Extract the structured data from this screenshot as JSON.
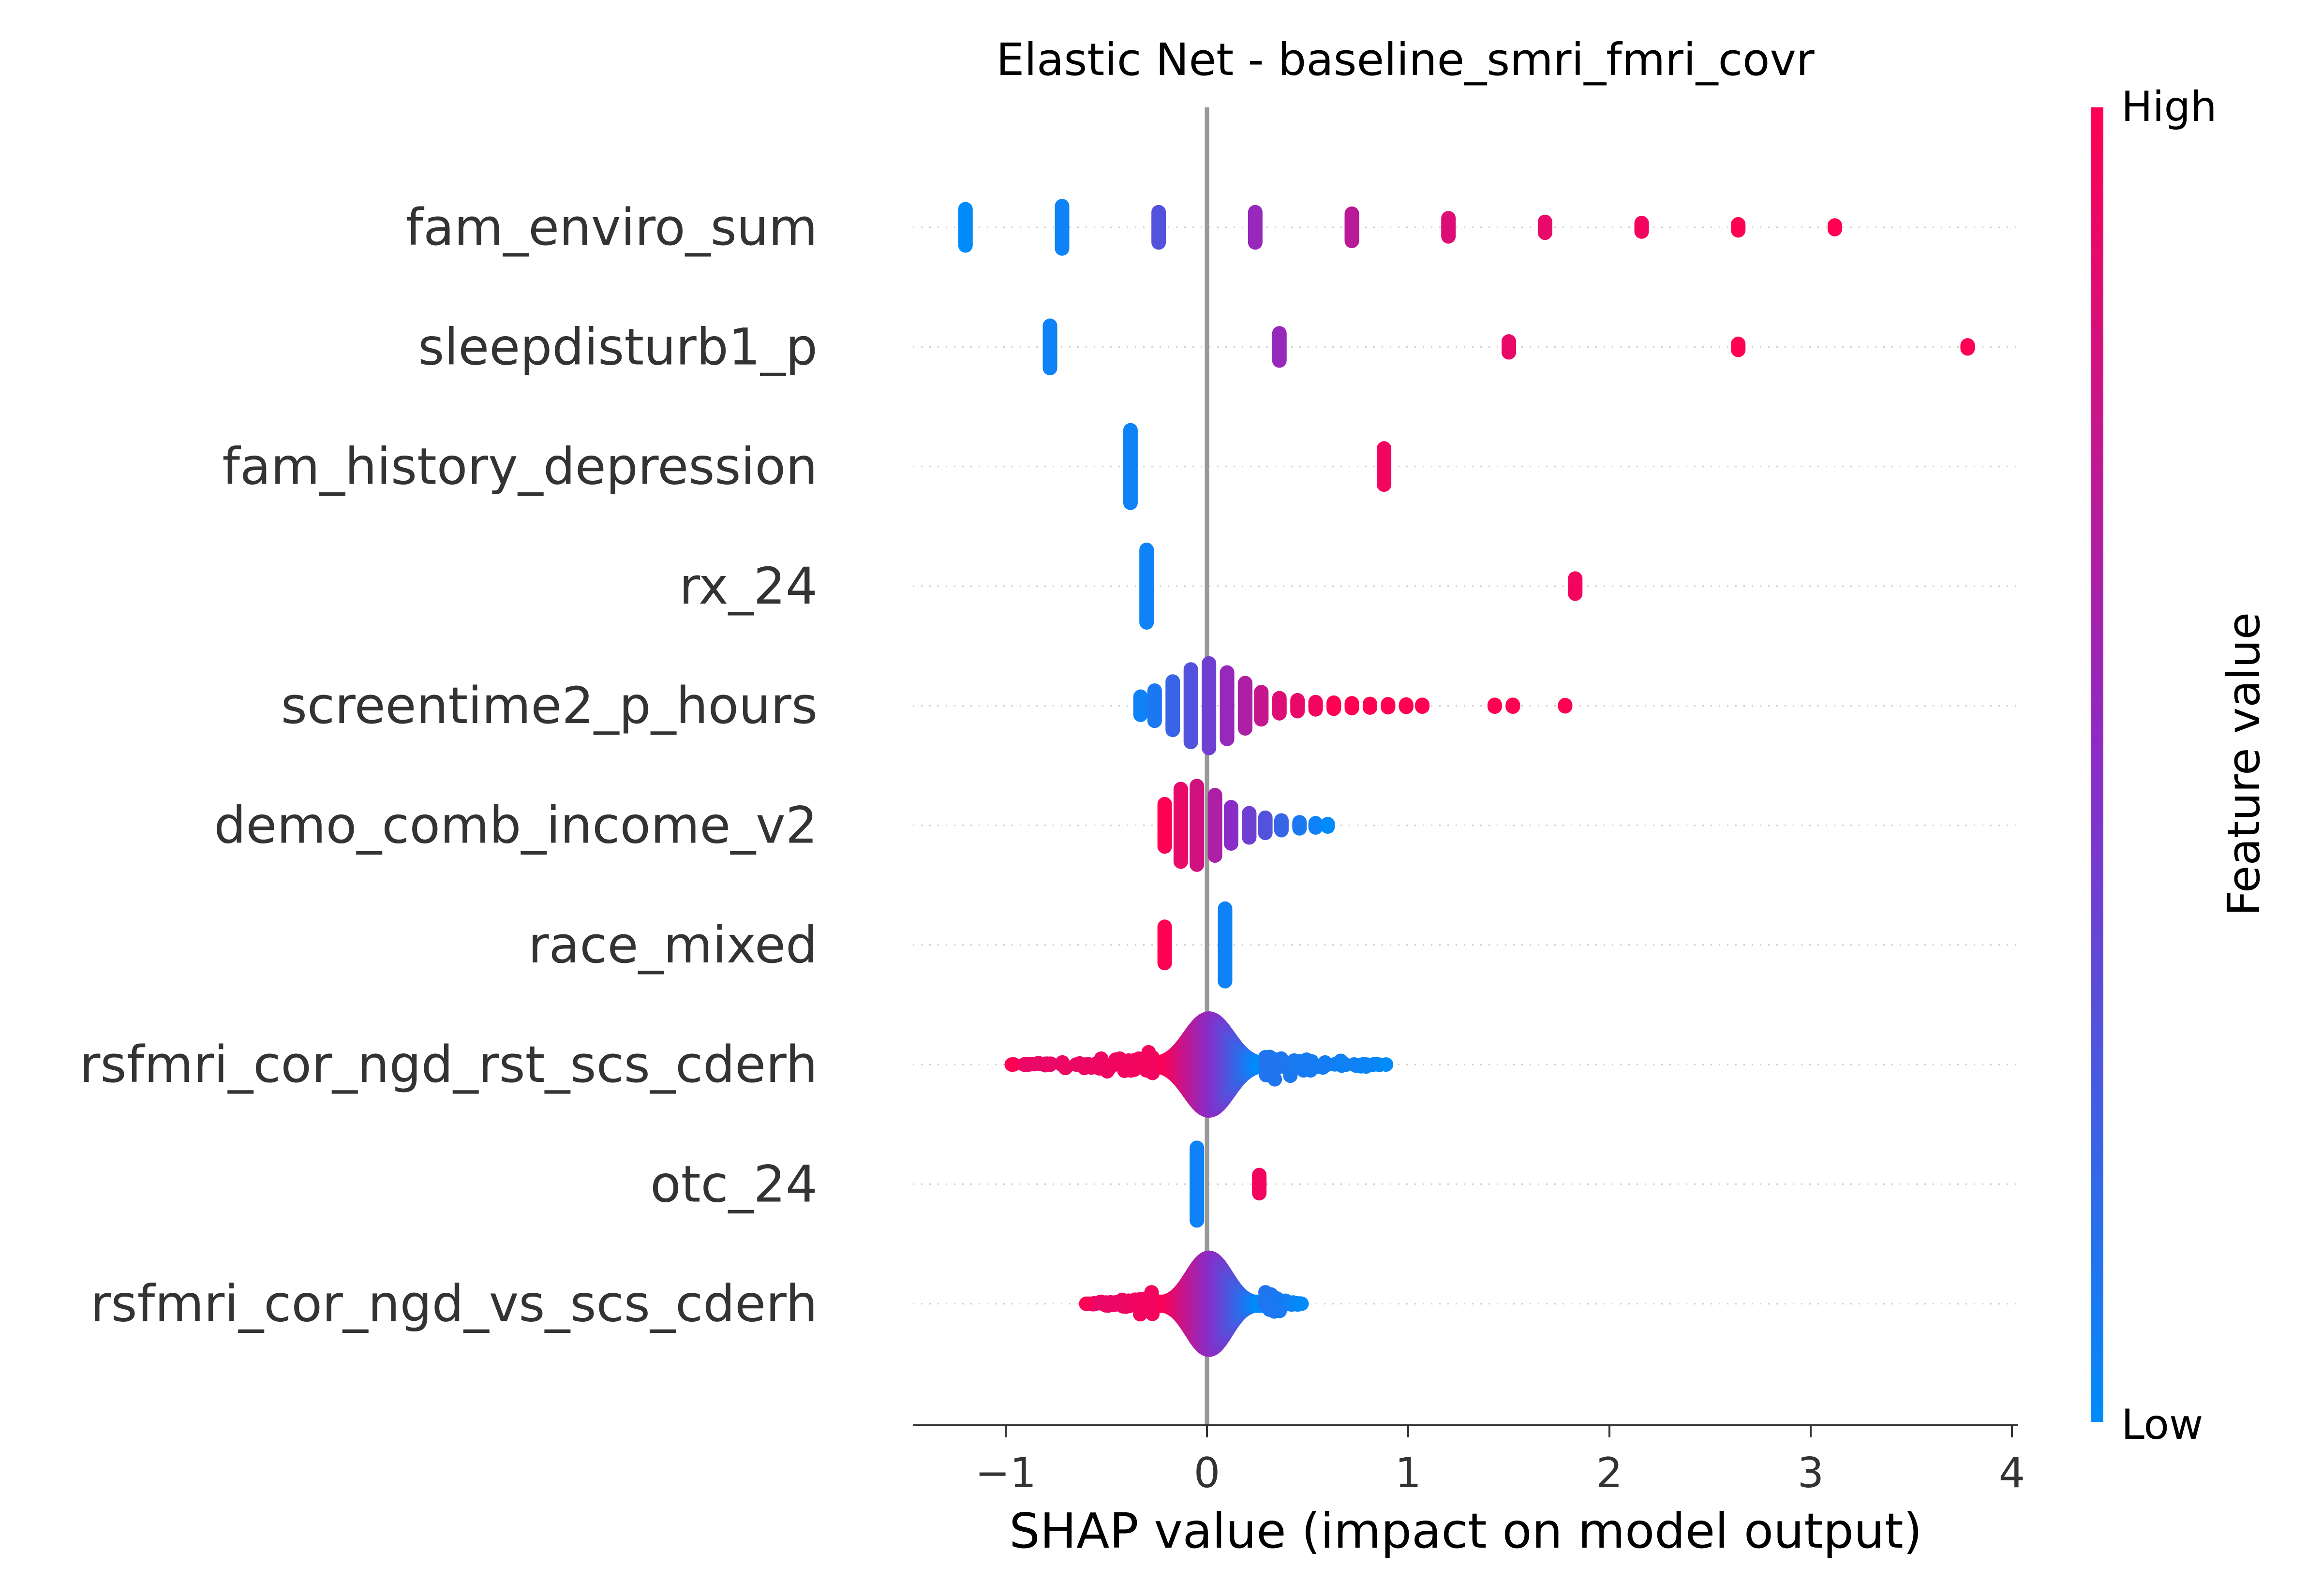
{
  "chart_data": {
    "type": "scatter",
    "title": "Elastic Net - baseline_smri_fmri_covr",
    "xlabel": "SHAP value (impact on model output)",
    "xlim": [
      -1.45,
      4.0
    ],
    "xticks": [
      {
        "value": -1,
        "label": "−1"
      },
      {
        "value": 0,
        "label": "0"
      },
      {
        "value": 1,
        "label": "1"
      },
      {
        "value": 2,
        "label": "2"
      },
      {
        "value": 3,
        "label": "3"
      },
      {
        "value": 4,
        "label": "4"
      }
    ],
    "colorbar": {
      "label": "Feature value",
      "high_label": "High",
      "low_label": "Low",
      "low_color": "#008bfb",
      "high_color": "#ff0052"
    },
    "features": [
      {
        "name": "fam_enviro_sum",
        "clusters": [
          {
            "x": -1.2,
            "n": 60,
            "v": 0.0
          },
          {
            "x": -0.72,
            "n": 70,
            "v": 0.05
          },
          {
            "x": -0.24,
            "n": 50,
            "v": 0.3
          },
          {
            "x": 0.24,
            "n": 50,
            "v": 0.55
          },
          {
            "x": 0.72,
            "n": 45,
            "v": 0.7
          },
          {
            "x": 1.2,
            "n": 30,
            "v": 0.85
          },
          {
            "x": 1.68,
            "n": 18,
            "v": 0.9
          },
          {
            "x": 2.16,
            "n": 14,
            "v": 0.95
          },
          {
            "x": 2.64,
            "n": 10,
            "v": 1.0
          },
          {
            "x": 3.12,
            "n": 6,
            "v": 1.0
          }
        ]
      },
      {
        "name": "sleepdisturb1_p",
        "clusters": [
          {
            "x": -0.78,
            "n": 70,
            "v": 0.05
          },
          {
            "x": 0.36,
            "n": 45,
            "v": 0.55
          },
          {
            "x": 1.5,
            "n": 18,
            "v": 0.9
          },
          {
            "x": 2.64,
            "n": 10,
            "v": 1.0
          },
          {
            "x": 3.78,
            "n": 5,
            "v": 1.0
          }
        ]
      },
      {
        "name": "fam_history_depression",
        "clusters": [
          {
            "x": -0.38,
            "n": 120,
            "v": 0.05
          },
          {
            "x": 0.88,
            "n": 60,
            "v": 0.95
          }
        ]
      },
      {
        "name": "rx_24",
        "clusters": [
          {
            "x": -0.3,
            "n": 120,
            "v": 0.05
          },
          {
            "x": 1.83,
            "n": 25,
            "v": 0.95
          }
        ]
      },
      {
        "name": "screentime2_p_hours",
        "clusters": [
          {
            "x": -0.33,
            "n": 30,
            "v": 0.05
          },
          {
            "x": -0.26,
            "n": 50,
            "v": 0.1
          },
          {
            "x": -0.17,
            "n": 80,
            "v": 0.2
          },
          {
            "x": -0.08,
            "n": 120,
            "v": 0.3
          },
          {
            "x": 0.01,
            "n": 140,
            "v": 0.4
          },
          {
            "x": 0.1,
            "n": 110,
            "v": 0.55
          },
          {
            "x": 0.19,
            "n": 75,
            "v": 0.65
          },
          {
            "x": 0.27,
            "n": 45,
            "v": 0.75
          },
          {
            "x": 0.36,
            "n": 25,
            "v": 0.85
          },
          {
            "x": 0.45,
            "n": 18,
            "v": 0.9
          },
          {
            "x": 0.54,
            "n": 12,
            "v": 0.95
          },
          {
            "x": 0.63,
            "n": 10,
            "v": 1.0
          },
          {
            "x": 0.72,
            "n": 8,
            "v": 1.0
          },
          {
            "x": 0.81,
            "n": 6,
            "v": 1.0
          },
          {
            "x": 0.9,
            "n": 5,
            "v": 1.0
          },
          {
            "x": 0.99,
            "n": 4,
            "v": 1.0
          },
          {
            "x": 1.07,
            "n": 3,
            "v": 1.0
          },
          {
            "x": 1.43,
            "n": 3,
            "v": 1.0
          },
          {
            "x": 1.52,
            "n": 3,
            "v": 1.0
          },
          {
            "x": 1.78,
            "n": 2,
            "v": 1.0
          }
        ]
      },
      {
        "name": "demo_comb_income_v2",
        "clusters": [
          {
            "x": -0.21,
            "n": 70,
            "v": 1.0
          },
          {
            "x": -0.13,
            "n": 120,
            "v": 0.9
          },
          {
            "x": -0.05,
            "n": 130,
            "v": 0.8
          },
          {
            "x": 0.04,
            "n": 100,
            "v": 0.65
          },
          {
            "x": 0.12,
            "n": 60,
            "v": 0.5
          },
          {
            "x": 0.21,
            "n": 40,
            "v": 0.4
          },
          {
            "x": 0.29,
            "n": 25,
            "v": 0.3
          },
          {
            "x": 0.37,
            "n": 16,
            "v": 0.2
          },
          {
            "x": 0.46,
            "n": 10,
            "v": 0.1
          },
          {
            "x": 0.54,
            "n": 7,
            "v": 0.05
          },
          {
            "x": 0.6,
            "n": 4,
            "v": 0.0
          }
        ]
      },
      {
        "name": "race_mixed",
        "clusters": [
          {
            "x": -0.21,
            "n": 60,
            "v": 1.0
          },
          {
            "x": 0.09,
            "n": 120,
            "v": 0.05
          }
        ]
      }
    ],
    "continuous_features": [
      {
        "name": "rsfmri_cor_ngd_rst_scs_cderh",
        "center": 0.01,
        "core_sd": 0.045,
        "core_n": 1700,
        "left_tail": -0.97,
        "right_tail": 0.89,
        "tail_n": 170
      },
      {
        "name": "otc_24",
        "discrete": true
      },
      {
        "name": "rsfmri_cor_ngd_vs_scs_cderh",
        "center": 0.01,
        "core_sd": 0.04,
        "core_n": 1500,
        "left_tail": -0.6,
        "right_tail": 0.47,
        "tail_n": 130
      }
    ],
    "otc_24_clusters": [
      {
        "x": -0.05,
        "n": 120,
        "v": 0.05
      },
      {
        "x": 0.26,
        "n": 30,
        "v": 0.95
      }
    ],
    "grid": false,
    "legend": "colorbar-right"
  }
}
